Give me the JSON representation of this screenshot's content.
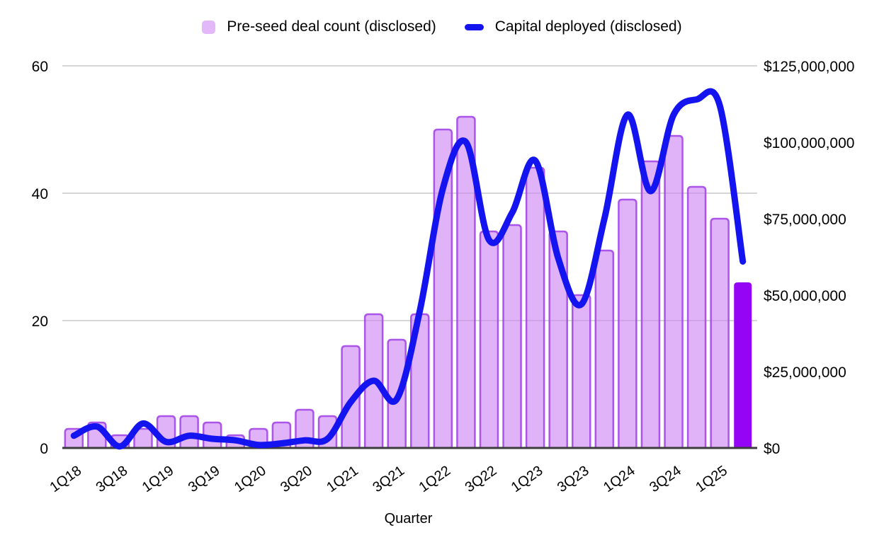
{
  "legend": {
    "items": [
      {
        "label": "Pre-seed deal count (disclosed)",
        "swatch": "square",
        "color": "#e2b8f8"
      },
      {
        "label": "Capital deployed (disclosed)",
        "swatch": "line",
        "color": "#1414f0"
      }
    ]
  },
  "chart_data": {
    "type": "combo-bar-line",
    "title": "",
    "xlabel": "Quarter",
    "categories": [
      "1Q18",
      "2Q18",
      "3Q18",
      "4Q18",
      "1Q19",
      "2Q19",
      "3Q19",
      "4Q19",
      "1Q20",
      "2Q20",
      "3Q20",
      "4Q20",
      "1Q21",
      "2Q21",
      "3Q21",
      "4Q21",
      "1Q22",
      "2Q22",
      "3Q22",
      "4Q22",
      "1Q23",
      "2Q23",
      "3Q23",
      "4Q23",
      "1Q24",
      "2Q24",
      "3Q24",
      "4Q24",
      "1Q25",
      "2Q25"
    ],
    "x_tick_labels": [
      "1Q18",
      "3Q18",
      "1Q19",
      "3Q19",
      "1Q20",
      "3Q20",
      "1Q21",
      "3Q21",
      "1Q22",
      "3Q22",
      "1Q23",
      "3Q23",
      "1Q24",
      "3Q24",
      "1Q25"
    ],
    "series": [
      {
        "name": "Pre-seed deal count (disclosed)",
        "type": "bar",
        "axis": "left",
        "values": [
          3,
          4,
          2,
          3,
          5,
          5,
          4,
          2,
          3,
          4,
          6,
          5,
          16,
          21,
          17,
          21,
          50,
          52,
          34,
          35,
          44,
          34,
          24,
          31,
          39,
          45,
          49,
          41,
          36,
          26
        ],
        "fill": "#cb7ef2",
        "fill_opacity": 0.6,
        "border": "#a347e8",
        "border_opacity": 0.9,
        "last_bar_fill": "#9405f6",
        "note_last_bar_highlighted": true
      },
      {
        "name": "Capital deployed (disclosed)",
        "type": "line",
        "axis": "right",
        "values": [
          4000000,
          7000000,
          500000,
          8000000,
          2000000,
          4000000,
          3000000,
          2500000,
          1000000,
          1500000,
          2500000,
          3000000,
          15000000,
          22000000,
          16000000,
          45000000,
          85000000,
          100000000,
          68000000,
          77000000,
          94000000,
          62000000,
          47000000,
          75000000,
          109000000,
          84000000,
          109000000,
          114000000,
          112000000,
          61000000
        ],
        "color": "#1414f0",
        "width": 9
      }
    ],
    "left_axis": {
      "min": 0,
      "max": 60,
      "ticks": [
        0,
        20,
        40,
        60
      ],
      "tick_labels": [
        "0",
        "20",
        "40",
        "60"
      ]
    },
    "right_axis": {
      "min": 0,
      "max": 125000000,
      "ticks": [
        0,
        25000000,
        50000000,
        75000000,
        100000000,
        125000000
      ],
      "tick_labels": [
        "$0",
        "$25,000,000",
        "$50,000,000",
        "$75,000,000",
        "$100,000,000",
        "$125,000,000"
      ]
    },
    "grid": true,
    "legend_position": "top",
    "colors": {
      "gridline": "#c8c8c8",
      "baseline": "#3c3c3c",
      "text": "#000000",
      "background": "#ffffff"
    }
  }
}
